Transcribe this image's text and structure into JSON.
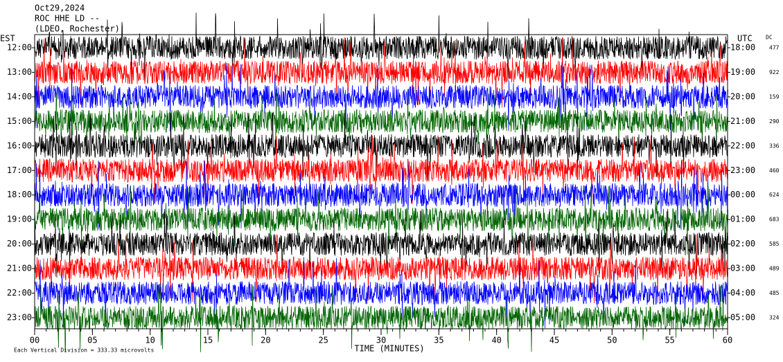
{
  "chart_data": {
    "type": "helicorder",
    "title_lines": [
      "Oct29,2024",
      "ROC HHE LD --",
      "(LDEO, Rochester)"
    ],
    "left_axis_label": "EST",
    "right_axis_label": "UTC",
    "dc_label": "DC",
    "xlabel": "TIME (MINUTES)",
    "scale_note": "Each Vertical Division =  333.33 microvolts",
    "rows": [
      "12:00",
      "13:00",
      "14:00",
      "15:00",
      "16:00",
      "17:00",
      "18:00",
      "19:00",
      "20:00",
      "21:00",
      "22:00",
      "23:00"
    ],
    "utc_rows": [
      "18:00",
      "19:00",
      "20:00",
      "21:00",
      "22:00",
      "23:00",
      "00:00",
      "01:00",
      "02:00",
      "03:00",
      "04:00",
      "05:00"
    ],
    "dc_values": [
      477,
      922,
      159,
      290,
      336,
      460,
      624,
      683,
      585,
      489,
      485,
      324
    ],
    "colors": [
      "#000000",
      "#ff0000",
      "#0000ff",
      "#006400"
    ],
    "xlim": [
      0,
      60
    ],
    "xticks": [
      {
        "value": 0,
        "label": "00"
      },
      {
        "value": 5,
        "label": "05"
      },
      10,
      15,
      20,
      25,
      30,
      35,
      40,
      45,
      50,
      55,
      60
    ]
  }
}
